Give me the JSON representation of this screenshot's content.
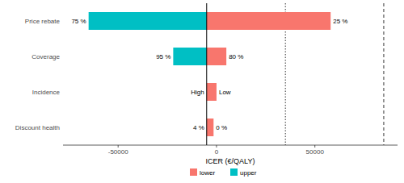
{
  "chart_data": {
    "type": "bar",
    "orientation": "horizontal",
    "categories": [
      "Price rebate",
      "Coverage",
      "Incidence",
      "Discount health"
    ],
    "base": -5000,
    "series": [
      {
        "name": "lower",
        "color": "#F8766D",
        "values": [
          58000,
          5000,
          0,
          -1500
        ],
        "bar_labels": [
          "25 %",
          "80 %",
          "Low",
          "0 %"
        ]
      },
      {
        "name": "upper",
        "color": "#00BFC4",
        "values": [
          -65000,
          -22000,
          -5000,
          -5000
        ],
        "bar_labels": [
          "75 %",
          "95 %",
          "High",
          "4 %"
        ]
      }
    ],
    "reference_lines": [
      {
        "value": 35000,
        "line_style": "dotted"
      },
      {
        "value": 85000,
        "line_style": "dashed"
      }
    ],
    "x_label": "ICER (€/QALY)",
    "xlim": [
      -78000,
      92000
    ],
    "xticks": [
      -50000,
      0,
      50000
    ],
    "legend": "bottom"
  }
}
